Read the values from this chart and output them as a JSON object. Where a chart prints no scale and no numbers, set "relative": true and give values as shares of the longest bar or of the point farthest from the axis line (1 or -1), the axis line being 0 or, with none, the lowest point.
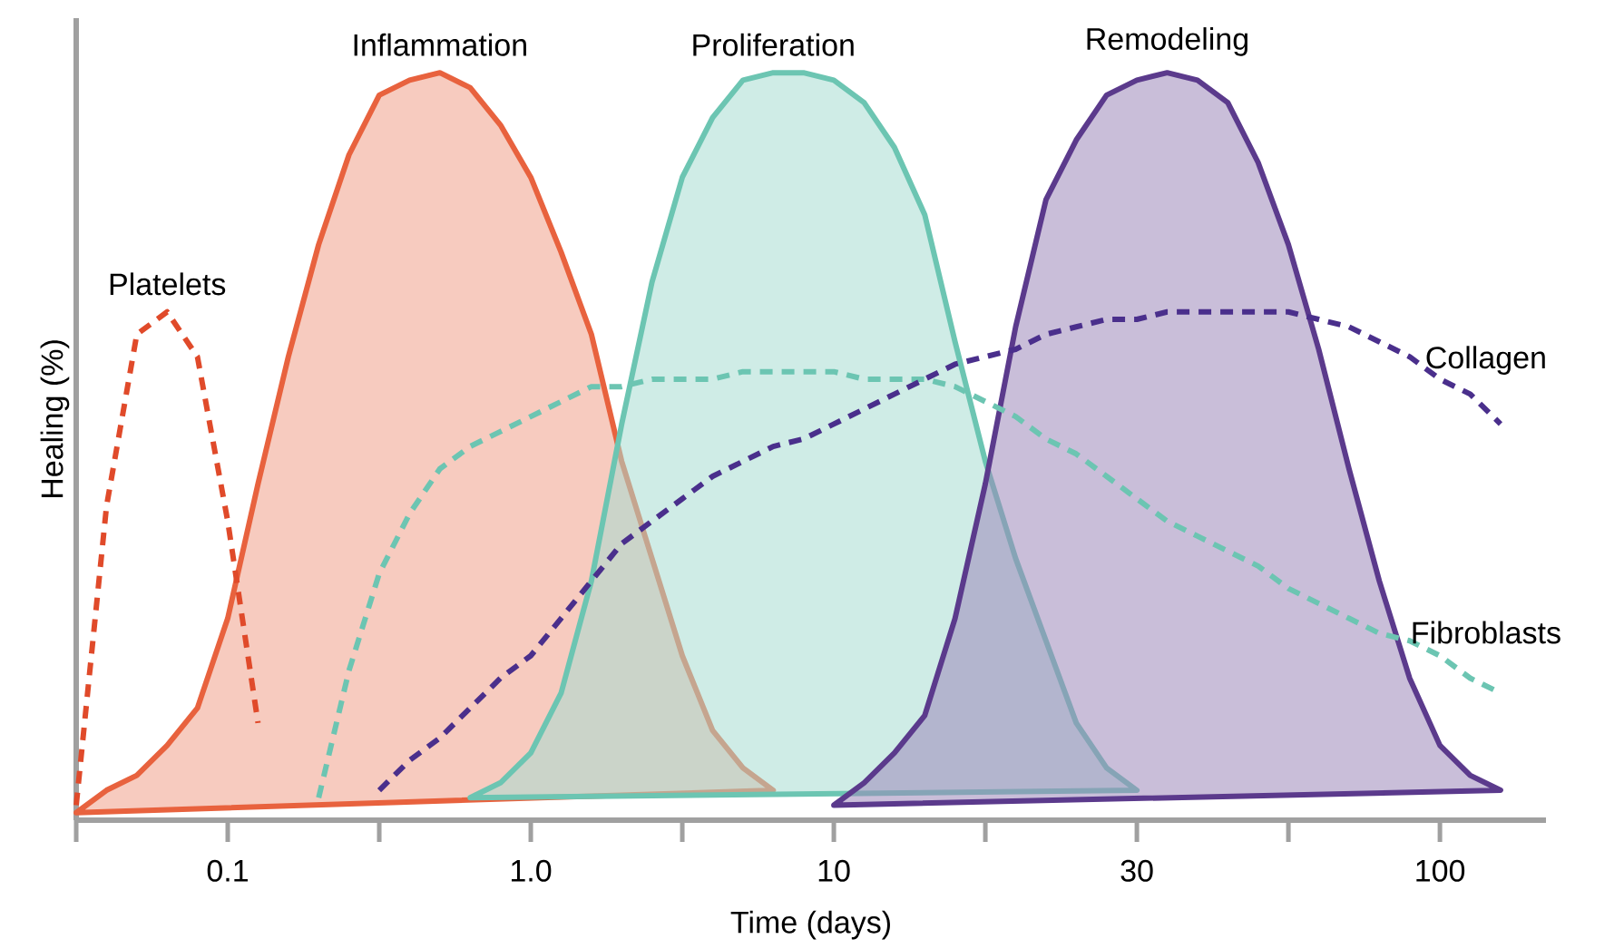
{
  "chart_data": {
    "type": "area",
    "relative": true,
    "xlabel": "Time (days)",
    "ylabel": "Healing (%)",
    "categories": [
      null,
      null,
      null,
      null,
      null,
      "0.1",
      null,
      null,
      null,
      null,
      null,
      null,
      null,
      null,
      null,
      "1.0",
      null,
      null,
      null,
      null,
      null,
      null,
      null,
      null,
      null,
      "10",
      null,
      null,
      null,
      null,
      null,
      null,
      null,
      null,
      null,
      "30",
      null,
      null,
      null,
      null,
      null,
      null,
      null,
      null,
      null,
      "100",
      null,
      null,
      null
    ],
    "series": [
      {
        "name": "Inflammation",
        "color": "#e8623e",
        "values": [
          0.01,
          0.04,
          0.06,
          0.1,
          0.15,
          0.27,
          0.45,
          0.62,
          0.77,
          0.89,
          0.97,
          0.99,
          1.0,
          0.98,
          0.93,
          0.86,
          0.76,
          0.65,
          0.48,
          0.35,
          0.22,
          0.12,
          0.07,
          0.04,
          null,
          null,
          null,
          null,
          null,
          null,
          null,
          null,
          null,
          null,
          null,
          null,
          null,
          null,
          null,
          null,
          null,
          null,
          null,
          null,
          null,
          null,
          null,
          null,
          null
        ]
      },
      {
        "name": "Proliferation",
        "color": "#6cc5b2",
        "values": [
          null,
          null,
          null,
          null,
          null,
          null,
          null,
          null,
          null,
          null,
          null,
          null,
          null,
          0.03,
          0.05,
          0.09,
          0.17,
          0.32,
          0.53,
          0.72,
          0.86,
          0.94,
          0.99,
          1.0,
          1.0,
          0.99,
          0.96,
          0.9,
          0.81,
          0.64,
          0.48,
          0.35,
          0.24,
          0.13,
          0.07,
          0.04,
          null,
          null,
          null,
          null,
          null,
          null,
          null,
          null,
          null,
          null,
          null,
          null,
          null
        ]
      },
      {
        "name": "Remodeling",
        "color": "#5b3a8c",
        "values": [
          null,
          null,
          null,
          null,
          null,
          null,
          null,
          null,
          null,
          null,
          null,
          null,
          null,
          null,
          null,
          null,
          null,
          null,
          null,
          null,
          null,
          null,
          null,
          null,
          null,
          0.02,
          0.05,
          0.09,
          0.14,
          0.27,
          0.45,
          0.66,
          0.83,
          0.91,
          0.97,
          0.99,
          1.0,
          0.99,
          0.96,
          0.88,
          0.77,
          0.63,
          0.47,
          0.32,
          0.19,
          0.1,
          0.06,
          0.04,
          null
        ]
      },
      {
        "name": "Platelets",
        "type": "line",
        "line_style": "dashed",
        "color": "#e04a2a",
        "values": [
          0.02,
          0.42,
          0.65,
          0.68,
          0.62,
          0.4,
          0.13,
          null,
          null,
          null,
          null,
          null,
          null,
          null,
          null,
          null,
          null,
          null,
          null,
          null,
          null,
          null,
          null,
          null,
          null,
          null,
          null,
          null,
          null,
          null,
          null,
          null,
          null,
          null,
          null,
          null,
          null,
          null,
          null,
          null,
          null,
          null,
          null,
          null,
          null,
          null,
          null,
          null,
          null
        ]
      },
      {
        "name": "Fibroblasts",
        "type": "line",
        "line_style": "dashed",
        "color": "#6cc5b2",
        "values": [
          null,
          null,
          null,
          null,
          null,
          null,
          null,
          null,
          0.03,
          0.2,
          0.33,
          0.41,
          0.47,
          0.5,
          0.52,
          0.54,
          0.56,
          0.58,
          0.58,
          0.59,
          0.59,
          0.59,
          0.6,
          0.6,
          0.6,
          0.6,
          0.59,
          0.59,
          0.59,
          0.58,
          0.56,
          0.54,
          0.51,
          0.49,
          0.46,
          0.43,
          0.4,
          0.38,
          0.36,
          0.34,
          0.31,
          0.29,
          0.27,
          0.25,
          0.24,
          0.22,
          0.19,
          0.17,
          null
        ]
      },
      {
        "name": "Collagen",
        "type": "line",
        "line_style": "dashed",
        "color": "#4a2f8c",
        "values": [
          null,
          null,
          null,
          null,
          null,
          null,
          null,
          null,
          null,
          null,
          0.04,
          0.08,
          0.11,
          0.15,
          0.19,
          0.22,
          0.27,
          0.32,
          0.37,
          0.4,
          0.43,
          0.46,
          0.48,
          0.5,
          0.51,
          0.53,
          0.55,
          0.57,
          0.59,
          0.61,
          0.62,
          0.63,
          0.65,
          0.66,
          0.67,
          0.67,
          0.68,
          0.68,
          0.68,
          0.68,
          0.68,
          0.67,
          0.66,
          0.64,
          0.62,
          0.59,
          0.57,
          0.53,
          null
        ]
      }
    ]
  }
}
